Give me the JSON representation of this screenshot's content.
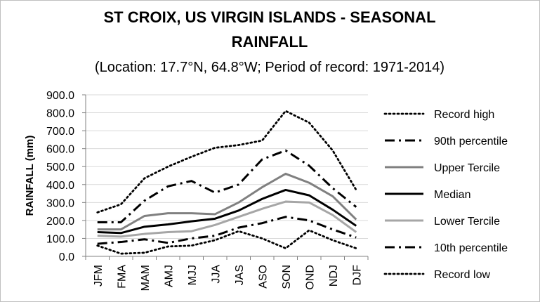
{
  "chart_data": {
    "type": "line",
    "title_line1": "ST CROIX, US VIRGIN ISLANDS - SEASONAL",
    "title_line2": "RAINFALL",
    "subtitle": "(Location: 17.7°N, 64.8°W; Period of record: 1971-2014)",
    "xlabel": "",
    "ylabel": "RAINFALL (mm)",
    "ylim": [
      0,
      900
    ],
    "yticks": [
      "0.0",
      "100.0",
      "200.0",
      "300.0",
      "400.0",
      "500.0",
      "600.0",
      "700.0",
      "800.0",
      "900.0"
    ],
    "grid": true,
    "legend_position": "right",
    "categories": [
      "JFM",
      "FMA",
      "MAM",
      "AMJ",
      "MJJ",
      "JJA",
      "JAS",
      "ASO",
      "SON",
      "OND",
      "NDJ",
      "DJF"
    ],
    "series": [
      {
        "name": "Record high",
        "style": "dotted",
        "color": "#000000",
        "values": [
          245,
          290,
          435,
          500,
          555,
          605,
          620,
          645,
          810,
          745,
          590,
          370
        ]
      },
      {
        "name": "90th percentile",
        "style": "dashdot",
        "color": "#000000",
        "values": [
          190,
          190,
          310,
          390,
          420,
          355,
          400,
          540,
          590,
          505,
          380,
          275
        ]
      },
      {
        "name": "Upper Tercile",
        "style": "solid",
        "color": "#808080",
        "values": [
          150,
          150,
          225,
          240,
          240,
          235,
          300,
          385,
          460,
          410,
          335,
          205
        ]
      },
      {
        "name": "Median",
        "style": "solid",
        "color": "#000000",
        "values": [
          135,
          130,
          165,
          178,
          195,
          210,
          255,
          320,
          370,
          340,
          260,
          170
        ]
      },
      {
        "name": "Lower Tercile",
        "style": "solid",
        "color": "#a6a6a6",
        "values": [
          115,
          110,
          125,
          135,
          140,
          175,
          220,
          265,
          305,
          300,
          230,
          135
        ]
      },
      {
        "name": "10th percentile",
        "style": "dashdot",
        "color": "#000000",
        "values": [
          70,
          80,
          95,
          75,
          100,
          115,
          160,
          185,
          220,
          200,
          150,
          105
        ]
      },
      {
        "name": "Record low",
        "style": "dotted",
        "color": "#000000",
        "values": [
          60,
          15,
          20,
          55,
          60,
          90,
          140,
          100,
          45,
          145,
          90,
          45
        ]
      }
    ]
  }
}
